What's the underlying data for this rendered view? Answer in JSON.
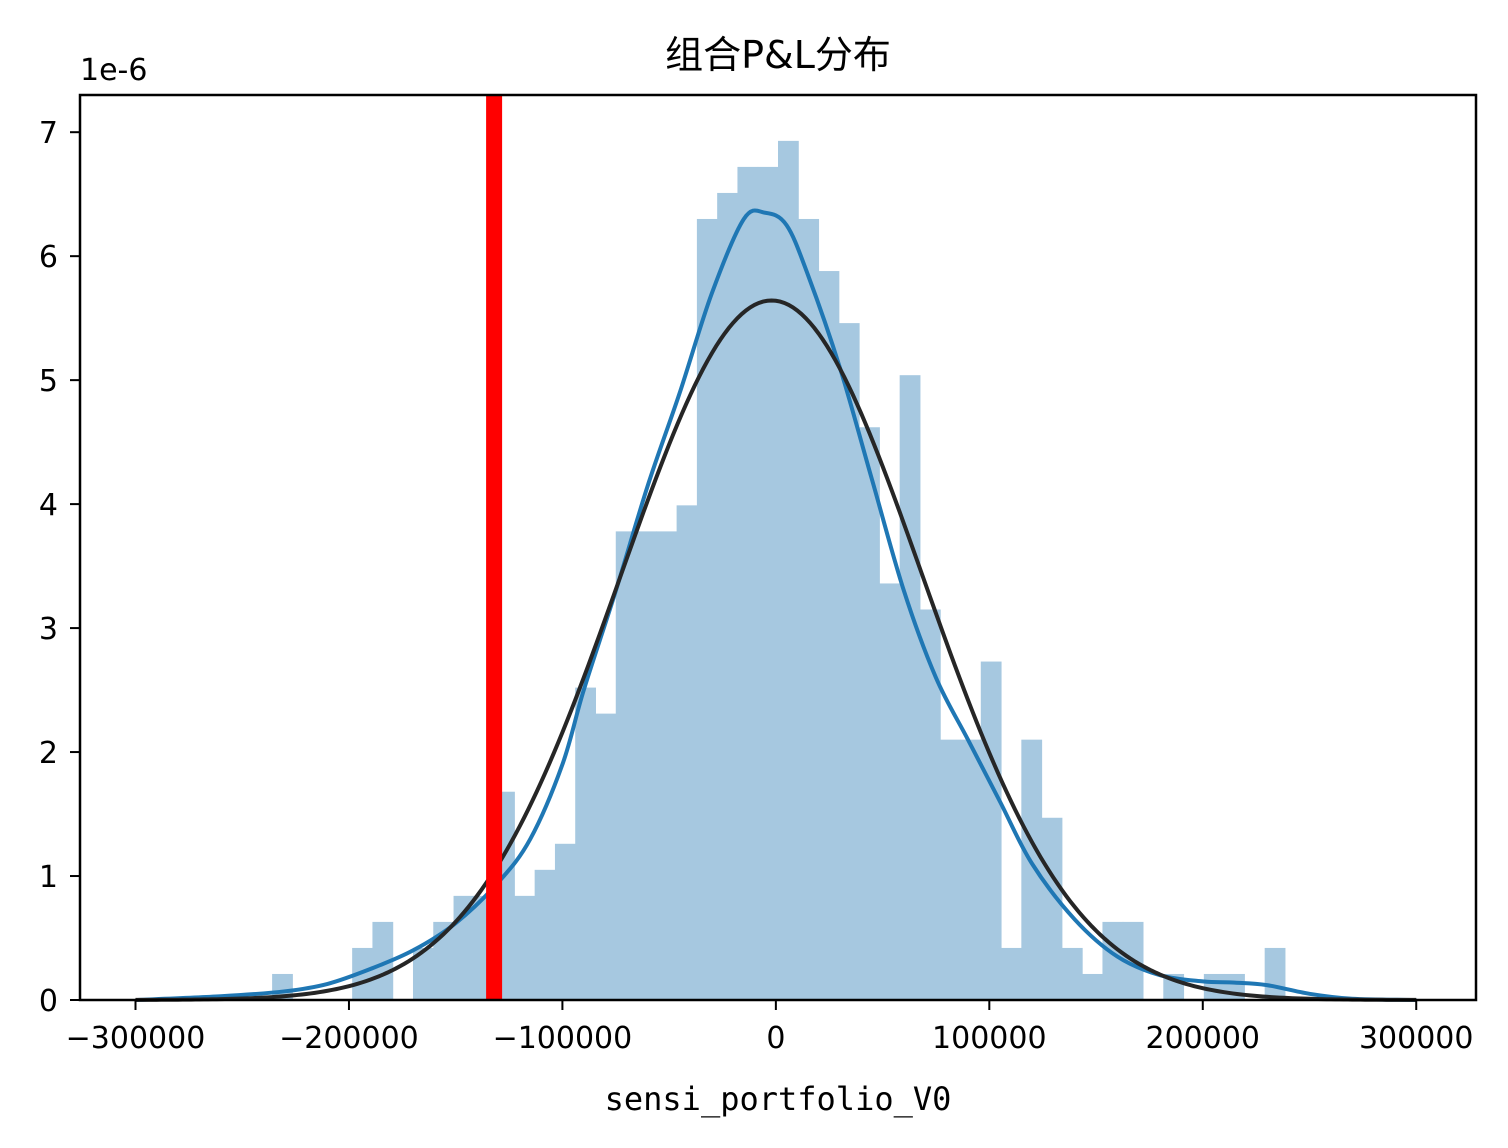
{
  "chart_data": {
    "type": "bar",
    "title": "组合P&L分布",
    "xlabel": "sensi_portfolio_V0",
    "ylabel": "",
    "y_offset_label": "1e-6",
    "xlim": [
      -326000,
      328000
    ],
    "ylim": [
      0,
      7.3
    ],
    "x_ticks": [
      -300000,
      -200000,
      -100000,
      0,
      100000,
      200000,
      300000
    ],
    "x_tick_labels": [
      "−300000",
      "−200000",
      "−100000",
      "0",
      "100000",
      "200000",
      "300000"
    ],
    "y_ticks": [
      0,
      1,
      2,
      3,
      4,
      5,
      6,
      7
    ],
    "y_tick_labels": [
      "0",
      "1",
      "2",
      "3",
      "4",
      "5",
      "6",
      "7"
    ],
    "grid": false,
    "histogram": {
      "color": "#a6c8e0",
      "bins": [
        {
          "x0": -236000,
          "x1": -226500,
          "h": 0.21
        },
        {
          "x0": -198500,
          "x1": -189000,
          "h": 0.42
        },
        {
          "x0": -189000,
          "x1": -179500,
          "h": 0.63
        },
        {
          "x0": -170000,
          "x1": -160500,
          "h": 0.42
        },
        {
          "x0": -160500,
          "x1": -151000,
          "h": 0.63
        },
        {
          "x0": -151000,
          "x1": -141500,
          "h": 0.84
        },
        {
          "x0": -141500,
          "x1": -132000,
          "h": 0.84
        },
        {
          "x0": -132000,
          "x1": -122500,
          "h": 1.68
        },
        {
          "x0": -122500,
          "x1": -113000,
          "h": 0.84
        },
        {
          "x0": -113000,
          "x1": -103500,
          "h": 1.05
        },
        {
          "x0": -103500,
          "x1": -94000,
          "h": 1.26
        },
        {
          "x0": -94000,
          "x1": -84500,
          "h": 2.52
        },
        {
          "x0": -84500,
          "x1": -75000,
          "h": 2.31
        },
        {
          "x0": -75000,
          "x1": -65500,
          "h": 3.78
        },
        {
          "x0": -65500,
          "x1": -56000,
          "h": 3.78
        },
        {
          "x0": -56000,
          "x1": -46500,
          "h": 3.78
        },
        {
          "x0": -46500,
          "x1": -37000,
          "h": 3.99
        },
        {
          "x0": -37000,
          "x1": -27500,
          "h": 6.3
        },
        {
          "x0": -27500,
          "x1": -18000,
          "h": 6.51
        },
        {
          "x0": -18000,
          "x1": -8500,
          "h": 6.72
        },
        {
          "x0": -8500,
          "x1": 1000,
          "h": 6.72
        },
        {
          "x0": 1000,
          "x1": 10500,
          "h": 6.93
        },
        {
          "x0": 10500,
          "x1": 20000,
          "h": 6.3
        },
        {
          "x0": 20000,
          "x1": 29500,
          "h": 5.88
        },
        {
          "x0": 29500,
          "x1": 39000,
          "h": 5.46
        },
        {
          "x0": 39000,
          "x1": 48500,
          "h": 4.62
        },
        {
          "x0": 48500,
          "x1": 58000,
          "h": 3.36
        },
        {
          "x0": 58000,
          "x1": 67500,
          "h": 5.04
        },
        {
          "x0": 67500,
          "x1": 77000,
          "h": 3.15
        },
        {
          "x0": 77000,
          "x1": 86500,
          "h": 2.1
        },
        {
          "x0": 86500,
          "x1": 96000,
          "h": 2.1
        },
        {
          "x0": 96000,
          "x1": 105500,
          "h": 2.73
        },
        {
          "x0": 105500,
          "x1": 115000,
          "h": 0.42
        },
        {
          "x0": 115000,
          "x1": 124500,
          "h": 2.1
        },
        {
          "x0": 124500,
          "x1": 134000,
          "h": 1.47
        },
        {
          "x0": 134000,
          "x1": 143500,
          "h": 0.42
        },
        {
          "x0": 143500,
          "x1": 153000,
          "h": 0.21
        },
        {
          "x0": 153000,
          "x1": 162500,
          "h": 0.63
        },
        {
          "x0": 162500,
          "x1": 172000,
          "h": 0.63
        },
        {
          "x0": 181500,
          "x1": 191000,
          "h": 0.21
        },
        {
          "x0": 200500,
          "x1": 210000,
          "h": 0.21
        },
        {
          "x0": 210000,
          "x1": 219500,
          "h": 0.21
        },
        {
          "x0": 229000,
          "x1": 238500,
          "h": 0.42
        }
      ]
    },
    "series": [
      {
        "type": "kde",
        "color": "#1f77b4",
        "points": [
          [
            -300000,
            0.0
          ],
          [
            -260000,
            0.03
          ],
          [
            -230000,
            0.07
          ],
          [
            -210000,
            0.13
          ],
          [
            -190000,
            0.25
          ],
          [
            -170000,
            0.4
          ],
          [
            -150000,
            0.62
          ],
          [
            -130000,
            0.95
          ],
          [
            -115000,
            1.3
          ],
          [
            -100000,
            1.9
          ],
          [
            -90000,
            2.5
          ],
          [
            -75000,
            3.3
          ],
          [
            -60000,
            4.15
          ],
          [
            -45000,
            4.9
          ],
          [
            -30000,
            5.7
          ],
          [
            -15000,
            6.3
          ],
          [
            -5000,
            6.35
          ],
          [
            5000,
            6.25
          ],
          [
            15000,
            5.85
          ],
          [
            30000,
            5.1
          ],
          [
            45000,
            4.2
          ],
          [
            60000,
            3.3
          ],
          [
            75000,
            2.6
          ],
          [
            90000,
            2.1
          ],
          [
            105000,
            1.6
          ],
          [
            120000,
            1.1
          ],
          [
            140000,
            0.65
          ],
          [
            160000,
            0.35
          ],
          [
            180000,
            0.2
          ],
          [
            200000,
            0.15
          ],
          [
            215000,
            0.14
          ],
          [
            230000,
            0.12
          ],
          [
            250000,
            0.05
          ],
          [
            270000,
            0.01
          ],
          [
            300000,
            0.0
          ]
        ]
      },
      {
        "type": "normal_fit",
        "color": "#262626",
        "mean": -2000,
        "std": 70700,
        "x_range": [
          -300000,
          300000
        ]
      }
    ],
    "vline": {
      "x": -132000,
      "color": "#ff0000"
    }
  }
}
